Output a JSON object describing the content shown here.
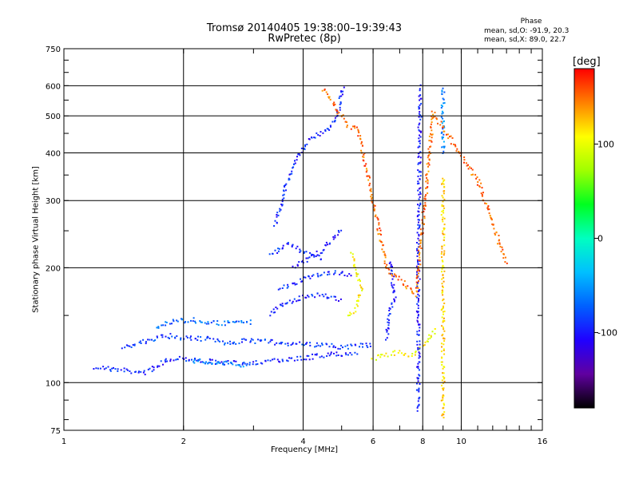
{
  "chart_data": {
    "type": "scatter",
    "title": "Tromsø 20140405 19:38:00–19:39:43",
    "subtitle": "RwPretec (8p)",
    "xlabel": "Frequency [MHz]",
    "ylabel": "Stationary phase Virtual Height [km]",
    "x_scale": "log",
    "y_scale": "log",
    "xlim": [
      1,
      16
    ],
    "ylim": [
      75,
      750
    ],
    "x_ticks": [
      1,
      2,
      4,
      6,
      8,
      10,
      16
    ],
    "x_tick_labels": [
      "1",
      "2",
      "4",
      "6",
      "8",
      "10",
      "16"
    ],
    "y_ticks": [
      75,
      100,
      200,
      300,
      400,
      500,
      600,
      750
    ],
    "y_tick_labels": [
      "75",
      "100",
      "200",
      "300",
      "400",
      "500",
      "600",
      "750"
    ],
    "grid": true,
    "phase_legend": {
      "heading": "Phase",
      "o_mode": "mean, sd,O: -91.9, 20.3",
      "x_mode": "mean, sd,X:  89.0, 22.7"
    },
    "colorbar": {
      "unit": "[deg]",
      "range": [
        -180,
        180
      ],
      "ticks": [
        100,
        0,
        -100
      ],
      "tick_labels": [
        "100",
        "0",
        "-100"
      ],
      "colors": [
        "#000000",
        "#6000a0",
        "#2000ff",
        "#0060ff",
        "#00c0ff",
        "#00ffc0",
        "#00ff20",
        "#a0ff00",
        "#ffff00",
        "#ff8000",
        "#ff0000"
      ]
    },
    "traces": [
      {
        "name": "",
        "phase": -95,
        "x": [
          1.2,
          1.35,
          1.5,
          1.6,
          1.7,
          1.8,
          1.9,
          2.0,
          2.2,
          2.5,
          2.8,
          3.0,
          3.5,
          4.0,
          4.5,
          5.0,
          5.5
        ],
        "y": [
          110,
          108,
          107,
          106,
          110,
          114,
          116,
          116,
          114,
          113,
          112,
          113,
          114,
          116,
          118,
          119,
          120
        ]
      },
      {
        "name": "",
        "phase": -55,
        "x": [
          2.1,
          2.3,
          2.5,
          2.7,
          2.9
        ],
        "y": [
          114,
          113,
          112,
          112,
          111
        ]
      },
      {
        "name": "",
        "phase": -85,
        "x": [
          1.4,
          1.6,
          1.8,
          2.0,
          2.3,
          2.6,
          2.9,
          3.2,
          3.6,
          4.0,
          4.5,
          5.0,
          5.5,
          6.0
        ],
        "y": [
          124,
          128,
          133,
          131,
          130,
          127,
          129,
          128,
          127,
          126,
          125,
          124,
          125,
          125
        ]
      },
      {
        "name": "",
        "phase": -70,
        "x": [
          1.7,
          1.9,
          2.1,
          2.4,
          2.7,
          3.0
        ],
        "y": [
          140,
          145,
          146,
          143,
          144,
          144
        ]
      },
      {
        "name": "",
        "phase": -95,
        "x": [
          3.3,
          3.5,
          3.8,
          4.1,
          4.4,
          4.7,
          5.0
        ],
        "y": [
          150,
          160,
          165,
          168,
          170,
          167,
          165
        ]
      },
      {
        "name": "",
        "phase": -95,
        "x": [
          3.5,
          3.8,
          4.1,
          4.4,
          4.7,
          5.0,
          5.3
        ],
        "y": [
          175,
          182,
          188,
          192,
          195,
          193,
          190
        ]
      },
      {
        "name": "",
        "phase": -100,
        "x": [
          3.8,
          4.1,
          4.4,
          4.6,
          4.8,
          5.0
        ],
        "y": [
          200,
          210,
          220,
          230,
          240,
          250
        ]
      },
      {
        "name": "",
        "phase": -95,
        "x": [
          3.3,
          3.5,
          3.7,
          4.0,
          4.3,
          4.5
        ],
        "y": [
          215,
          225,
          232,
          220,
          215,
          210
        ]
      },
      {
        "name": "",
        "phase": -95,
        "x": [
          3.4,
          3.5,
          3.6,
          3.8,
          4.2,
          4.5,
          4.7,
          4.85,
          4.95,
          5.0,
          5.05
        ],
        "y": [
          260,
          290,
          320,
          380,
          440,
          450,
          470,
          500,
          540,
          570,
          600
        ]
      },
      {
        "name": "",
        "phase": 110,
        "x": [
          5.2,
          5.4,
          5.5,
          5.6,
          5.4,
          5.3
        ],
        "y": [
          150,
          155,
          165,
          175,
          200,
          220
        ]
      },
      {
        "name": "",
        "phase": 105,
        "x": [
          6.0,
          6.5,
          7.0,
          7.5,
          7.8,
          8.2,
          8.5,
          8.7
        ],
        "y": [
          116,
          118,
          120,
          118,
          122,
          128,
          135,
          140
        ]
      },
      {
        "name": "",
        "phase": -100,
        "x": [
          6.5,
          6.6,
          6.8,
          6.7,
          6.6
        ],
        "y": [
          130,
          150,
          170,
          190,
          210
        ]
      },
      {
        "name": "",
        "phase": -100,
        "x": [
          7.8,
          7.8,
          7.8,
          7.85,
          7.85,
          7.9
        ],
        "y": [
          85,
          140,
          250,
          350,
          450,
          600
        ]
      },
      {
        "name": "",
        "phase": -60,
        "x": [
          9.0,
          9.0,
          9.0,
          9.0,
          9.0,
          9.0
        ],
        "y": [
          400,
          430,
          470,
          500,
          550,
          600
        ]
      },
      {
        "name": "",
        "phase": 120,
        "x": [
          9.0,
          9.0,
          9.0,
          9.0
        ],
        "y": [
          80,
          150,
          200,
          350
        ]
      },
      {
        "name": "",
        "phase": 150,
        "x": [
          4.5,
          5.2,
          5.5,
          6.5,
          7.7,
          8.5,
          11,
          13
        ],
        "y": [
          590,
          470,
          460,
          200,
          170,
          510,
          340,
          205
        ]
      }
    ]
  }
}
